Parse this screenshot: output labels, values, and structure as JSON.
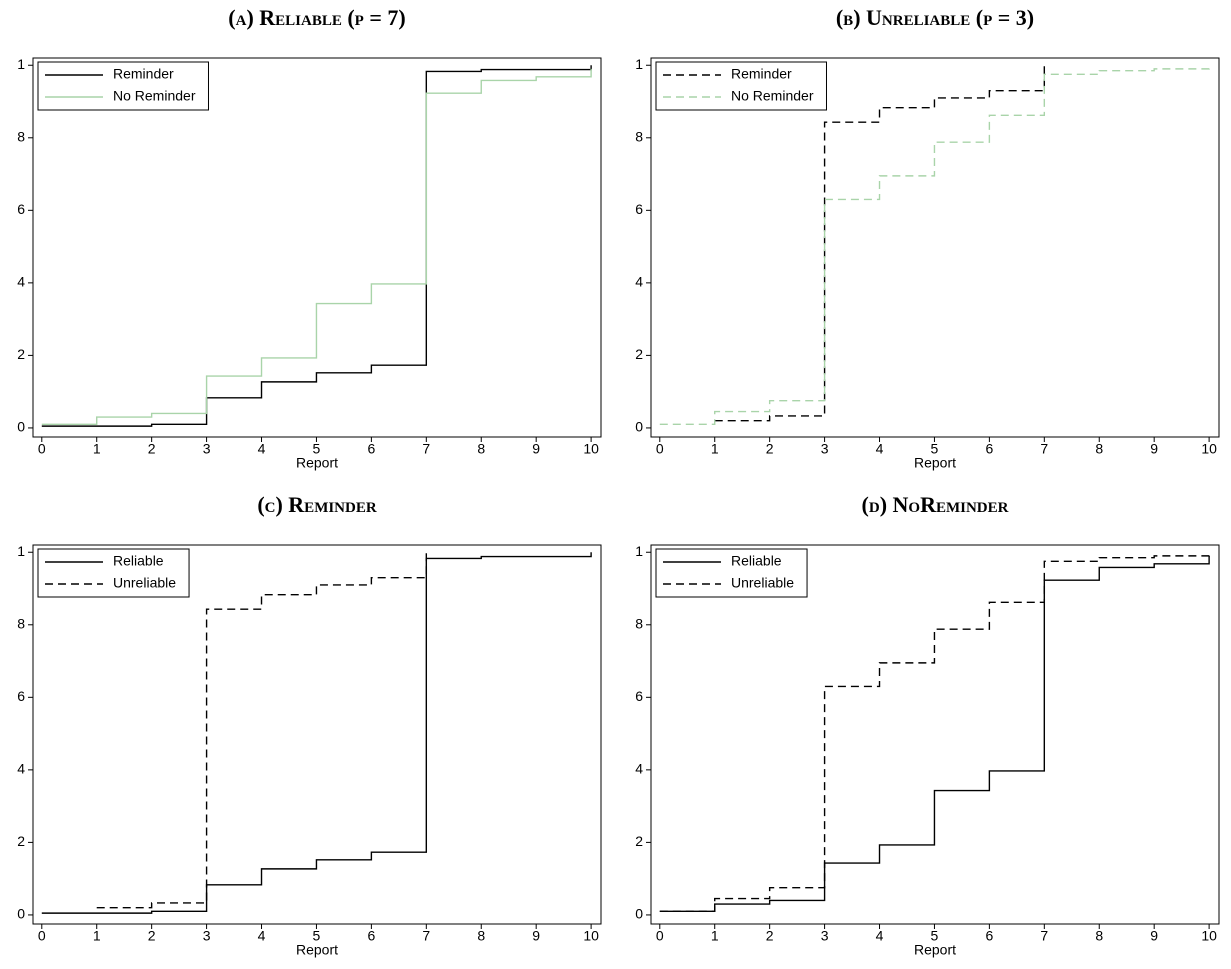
{
  "chart_data": [
    {
      "type": "step",
      "title": "(a) Reliable (p = 7)",
      "xlabel": "Report",
      "x": [
        0,
        1,
        2,
        3,
        4,
        5,
        6,
        7,
        8,
        9,
        10
      ],
      "series": [
        {
          "name": "Reminder",
          "color": "#000000",
          "linestyle": "solid",
          "values": [
            0.005,
            0.005,
            0.01,
            0.083,
            0.127,
            0.152,
            0.173,
            0.983,
            0.988,
            0.988,
            1
          ]
        },
        {
          "name": "No Reminder",
          "color": "#a9d4a9",
          "linestyle": "solid",
          "values": [
            0.01,
            0.03,
            0.04,
            0.143,
            0.193,
            0.343,
            0.397,
            0.923,
            0.958,
            0.968,
            0.99
          ]
        }
      ],
      "xlim": [
        -0.16,
        10.18
      ],
      "ylim": [
        -0.025,
        1.02
      ],
      "xticks": [
        0,
        1,
        2,
        3,
        4,
        5,
        6,
        7,
        8,
        9,
        10
      ],
      "yticks": [
        0,
        {
          "value": 0.2,
          "label": "2"
        },
        {
          "value": 0.4,
          "label": "4"
        },
        {
          "value": 0.6,
          "label": "6"
        },
        {
          "value": 0.8,
          "label": "8"
        },
        1
      ],
      "legend": "upper left"
    },
    {
      "type": "step",
      "title": "(b) Unreliable (p = 3)",
      "xlabel": "Report",
      "x": [
        0,
        1,
        2,
        3,
        4,
        5,
        6,
        7,
        8,
        9,
        10
      ],
      "series": [
        {
          "name": "Reminder",
          "color": "#000000",
          "linestyle": "dashed",
          "values": [
            null,
            0.02,
            0.033,
            0.843,
            0.883,
            0.91,
            0.93,
            1,
            null,
            null,
            null
          ]
        },
        {
          "name": "No Reminder",
          "color": "#a9d4a9",
          "linestyle": "dashed",
          "values": [
            0.01,
            0.045,
            0.075,
            0.63,
            0.695,
            0.788,
            0.862,
            0.975,
            0.985,
            0.99,
            1
          ]
        }
      ],
      "xlim": [
        -0.16,
        10.18
      ],
      "ylim": [
        -0.025,
        1.02
      ],
      "xticks": [
        0,
        1,
        2,
        3,
        4,
        5,
        6,
        7,
        8,
        9,
        10
      ],
      "yticks": [
        0,
        {
          "value": 0.2,
          "label": "2"
        },
        {
          "value": 0.4,
          "label": "4"
        },
        {
          "value": 0.6,
          "label": "6"
        },
        {
          "value": 0.8,
          "label": "8"
        },
        1
      ],
      "legend": "upper left"
    },
    {
      "type": "step",
      "title": "(c) Reminder",
      "xlabel": "Report",
      "x": [
        0,
        1,
        2,
        3,
        4,
        5,
        6,
        7,
        8,
        9,
        10
      ],
      "series": [
        {
          "name": "Reliable",
          "color": "#000000",
          "linestyle": "solid",
          "values": [
            0.005,
            0.005,
            0.01,
            0.083,
            0.127,
            0.152,
            0.173,
            0.983,
            0.988,
            0.988,
            1
          ]
        },
        {
          "name": "Unreliable",
          "color": "#000000",
          "linestyle": "dashed",
          "values": [
            null,
            0.02,
            0.033,
            0.843,
            0.883,
            0.91,
            0.93,
            1,
            null,
            null,
            null
          ]
        }
      ],
      "xlim": [
        -0.16,
        10.18
      ],
      "ylim": [
        -0.025,
        1.02
      ],
      "xticks": [
        0,
        1,
        2,
        3,
        4,
        5,
        6,
        7,
        8,
        9,
        10
      ],
      "yticks": [
        0,
        {
          "value": 0.2,
          "label": "2"
        },
        {
          "value": 0.4,
          "label": "4"
        },
        {
          "value": 0.6,
          "label": "6"
        },
        {
          "value": 0.8,
          "label": "8"
        },
        1
      ],
      "legend": "upper left"
    },
    {
      "type": "step",
      "title": "(d) NoReminder",
      "xlabel": "Report",
      "x": [
        0,
        1,
        2,
        3,
        4,
        5,
        6,
        7,
        8,
        9,
        10
      ],
      "series": [
        {
          "name": "Reliable",
          "color": "#000000",
          "linestyle": "solid",
          "values": [
            0.01,
            0.03,
            0.04,
            0.143,
            0.193,
            0.343,
            0.397,
            0.923,
            0.958,
            0.968,
            0.99
          ]
        },
        {
          "name": "Unreliable",
          "color": "#000000",
          "linestyle": "dashed",
          "values": [
            0.01,
            0.045,
            0.075,
            0.63,
            0.695,
            0.788,
            0.862,
            0.975,
            0.985,
            0.99,
            1
          ]
        }
      ],
      "xlim": [
        -0.16,
        10.18
      ],
      "ylim": [
        -0.025,
        1.02
      ],
      "xticks": [
        0,
        1,
        2,
        3,
        4,
        5,
        6,
        7,
        8,
        9,
        10
      ],
      "yticks": [
        0,
        {
          "value": 0.2,
          "label": "2"
        },
        {
          "value": 0.4,
          "label": "4"
        },
        {
          "value": 0.6,
          "label": "6"
        },
        {
          "value": 0.8,
          "label": "8"
        },
        1
      ],
      "legend": "upper left"
    }
  ]
}
